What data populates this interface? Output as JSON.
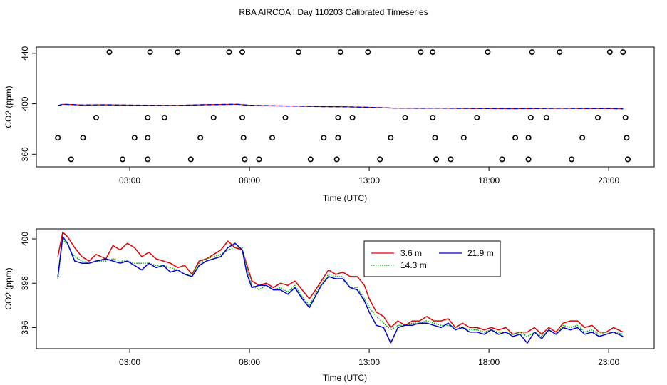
{
  "title": "RBA AIRCOA I  Day 110203  Calibrated Timeseries",
  "colors": {
    "s1": "#e00000",
    "s2": "#00b000",
    "s3": "#0000d0",
    "axis": "#000000"
  },
  "chart_data": [
    {
      "type": "scatter+line",
      "xlabel": "Time (UTC)",
      "ylabel": "CO2 (ppm)",
      "xticks": [
        {
          "v": 3,
          "label": "03:00"
        },
        {
          "v": 8,
          "label": "08:00"
        },
        {
          "v": 13,
          "label": "13:00"
        },
        {
          "v": 18,
          "label": "18:00"
        },
        {
          "v": 23,
          "label": "23:00"
        }
      ],
      "yticks": [
        {
          "v": 360,
          "label": "360"
        },
        {
          "v": 400,
          "label": "400"
        },
        {
          "v": 440,
          "label": "440"
        }
      ],
      "xlim": [
        -0.9,
        24.9
      ],
      "ylim": [
        350,
        445
      ],
      "calib_points": [
        {
          "x": 0.55,
          "y": 356
        },
        {
          "x": 2.7,
          "y": 356
        },
        {
          "x": 3.75,
          "y": 356
        },
        {
          "x": 5.55,
          "y": 356
        },
        {
          "x": 7.8,
          "y": 356
        },
        {
          "x": 8.4,
          "y": 356
        },
        {
          "x": 10.55,
          "y": 356
        },
        {
          "x": 11.65,
          "y": 356
        },
        {
          "x": 13.45,
          "y": 356
        },
        {
          "x": 15.8,
          "y": 356
        },
        {
          "x": 16.4,
          "y": 356
        },
        {
          "x": 18.55,
          "y": 356
        },
        {
          "x": 19.65,
          "y": 356
        },
        {
          "x": 21.45,
          "y": 356
        },
        {
          "x": 23.8,
          "y": 356
        },
        {
          "x": 0.0,
          "y": 373
        },
        {
          "x": 1.05,
          "y": 373
        },
        {
          "x": 3.2,
          "y": 373
        },
        {
          "x": 3.75,
          "y": 373
        },
        {
          "x": 5.95,
          "y": 373
        },
        {
          "x": 7.75,
          "y": 373
        },
        {
          "x": 8.95,
          "y": 373
        },
        {
          "x": 11.1,
          "y": 373
        },
        {
          "x": 11.7,
          "y": 373
        },
        {
          "x": 13.9,
          "y": 373
        },
        {
          "x": 15.75,
          "y": 373
        },
        {
          "x": 16.95,
          "y": 373
        },
        {
          "x": 19.1,
          "y": 373
        },
        {
          "x": 19.65,
          "y": 373
        },
        {
          "x": 21.9,
          "y": 373
        },
        {
          "x": 23.75,
          "y": 373
        },
        {
          "x": 1.6,
          "y": 389
        },
        {
          "x": 3.75,
          "y": 389
        },
        {
          "x": 4.45,
          "y": 389
        },
        {
          "x": 6.5,
          "y": 389
        },
        {
          "x": 7.7,
          "y": 389
        },
        {
          "x": 9.5,
          "y": 389
        },
        {
          "x": 11.7,
          "y": 389
        },
        {
          "x": 12.3,
          "y": 389
        },
        {
          "x": 14.5,
          "y": 389
        },
        {
          "x": 15.65,
          "y": 389
        },
        {
          "x": 17.5,
          "y": 389
        },
        {
          "x": 19.75,
          "y": 389
        },
        {
          "x": 20.4,
          "y": 389
        },
        {
          "x": 22.55,
          "y": 389
        },
        {
          "x": 23.7,
          "y": 389
        },
        {
          "x": 2.15,
          "y": 441
        },
        {
          "x": 3.85,
          "y": 441
        },
        {
          "x": 5.0,
          "y": 441
        },
        {
          "x": 7.15,
          "y": 441
        },
        {
          "x": 7.7,
          "y": 441
        },
        {
          "x": 10.05,
          "y": 441
        },
        {
          "x": 11.8,
          "y": 441
        },
        {
          "x": 12.95,
          "y": 441
        },
        {
          "x": 15.15,
          "y": 441
        },
        {
          "x": 15.65,
          "y": 441
        },
        {
          "x": 17.95,
          "y": 441
        },
        {
          "x": 19.8,
          "y": 441
        },
        {
          "x": 20.95,
          "y": 441
        },
        {
          "x": 23.05,
          "y": 441
        },
        {
          "x": 23.6,
          "y": 441
        }
      ],
      "trace": {
        "x": [
          0,
          0.2,
          0.5,
          1,
          2,
          3,
          4,
          5,
          6,
          7,
          7.5,
          8,
          9,
          10,
          11,
          12,
          13,
          14,
          15,
          16,
          17,
          18,
          19,
          20,
          21,
          22,
          23,
          23.6
        ],
        "y": [
          398.5,
          399.6,
          399.4,
          399.0,
          399.2,
          398.9,
          398.8,
          398.7,
          399.2,
          399.5,
          399.6,
          398.8,
          398.4,
          398.2,
          397.8,
          397.6,
          397.2,
          396.6,
          396.4,
          396.5,
          396.3,
          396.2,
          396.1,
          396.2,
          396.4,
          396.2,
          396.2,
          396.0
        ]
      }
    },
    {
      "type": "line",
      "xlabel": "Time (UTC)",
      "ylabel": "CO2 (ppm)",
      "xticks": [
        {
          "v": 3,
          "label": "03:00"
        },
        {
          "v": 8,
          "label": "08:00"
        },
        {
          "v": 13,
          "label": "13:00"
        },
        {
          "v": 18,
          "label": "18:00"
        },
        {
          "v": 23,
          "label": "23:00"
        }
      ],
      "yticks": [
        {
          "v": 396,
          "label": "396"
        },
        {
          "v": 398,
          "label": "398"
        },
        {
          "v": 400,
          "label": "400"
        }
      ],
      "xlim": [
        -0.9,
        24.9
      ],
      "ylim": [
        395.05,
        400.45
      ],
      "legend": {
        "position": "top-center",
        "entries": [
          "3.6 m",
          "14.3 m",
          "21.9 m"
        ]
      },
      "series": [
        {
          "name": "3.6 m",
          "color": "#e00000",
          "x": [
            0,
            0.2,
            0.4,
            0.7,
            1.0,
            1.3,
            1.6,
            2.0,
            2.3,
            2.6,
            2.9,
            3.2,
            3.5,
            3.8,
            4.1,
            4.4,
            4.7,
            5.0,
            5.3,
            5.6,
            5.9,
            6.2,
            6.5,
            6.8,
            7.1,
            7.4,
            7.7,
            7.9,
            8.1,
            8.4,
            8.7,
            9.0,
            9.3,
            9.6,
            9.9,
            10.2,
            10.5,
            10.7,
            11.0,
            11.3,
            11.6,
            11.9,
            12.2,
            12.5,
            12.8,
            13.0,
            13.3,
            13.6,
            13.9,
            14.2,
            14.5,
            14.8,
            15.1,
            15.4,
            15.7,
            16.0,
            16.3,
            16.6,
            16.9,
            17.2,
            17.5,
            17.8,
            18.1,
            18.4,
            18.7,
            19.0,
            19.3,
            19.6,
            19.9,
            20.2,
            20.5,
            20.8,
            21.1,
            21.4,
            21.7,
            22.0,
            22.3,
            22.6,
            22.9,
            23.2,
            23.6
          ],
          "y": [
            399.2,
            400.3,
            400.1,
            399.6,
            399.2,
            399.0,
            399.3,
            399.1,
            399.7,
            399.5,
            399.8,
            399.6,
            399.2,
            399.4,
            399.1,
            399.0,
            398.9,
            398.7,
            398.8,
            398.4,
            399.0,
            399.1,
            399.3,
            399.5,
            399.9,
            399.6,
            399.5,
            398.8,
            398.1,
            397.9,
            398.0,
            397.8,
            398.0,
            397.9,
            398.1,
            397.7,
            397.3,
            397.6,
            398.1,
            398.6,
            398.4,
            398.5,
            398.3,
            398.3,
            397.9,
            397.3,
            396.7,
            396.5,
            396.0,
            396.3,
            396.1,
            396.3,
            396.3,
            396.5,
            396.3,
            396.3,
            396.4,
            396.0,
            396.2,
            396.0,
            396.0,
            395.9,
            396.0,
            395.9,
            396.0,
            395.7,
            395.8,
            395.8,
            396.0,
            395.7,
            396.0,
            395.8,
            396.2,
            396.3,
            396.3,
            396.0,
            396.1,
            395.8,
            395.8,
            396.0,
            395.8
          ]
        },
        {
          "name": "14.3 m",
          "color": "#00b000",
          "x": [
            0,
            0.2,
            0.4,
            0.7,
            1.0,
            1.3,
            1.6,
            2.0,
            2.3,
            2.6,
            2.9,
            3.2,
            3.5,
            3.8,
            4.1,
            4.4,
            4.7,
            5.0,
            5.3,
            5.6,
            5.9,
            6.2,
            6.5,
            6.8,
            7.1,
            7.4,
            7.7,
            7.9,
            8.1,
            8.4,
            8.7,
            9.0,
            9.3,
            9.6,
            9.9,
            10.2,
            10.5,
            10.7,
            11.0,
            11.3,
            11.6,
            11.9,
            12.2,
            12.5,
            12.8,
            13.0,
            13.3,
            13.6,
            13.9,
            14.2,
            14.5,
            14.8,
            15.1,
            15.4,
            15.7,
            16.0,
            16.3,
            16.6,
            16.9,
            17.2,
            17.5,
            17.8,
            18.1,
            18.4,
            18.7,
            19.0,
            19.3,
            19.6,
            19.9,
            20.2,
            20.5,
            20.8,
            21.1,
            21.4,
            21.7,
            22.0,
            22.3,
            22.6,
            22.9,
            23.2,
            23.6
          ],
          "y": [
            398.2,
            400.0,
            399.7,
            399.2,
            399.0,
            398.9,
            399.0,
            399.0,
            399.1,
            399.0,
            399.0,
            398.9,
            398.9,
            398.9,
            398.8,
            398.8,
            398.7,
            398.6,
            398.4,
            398.4,
            398.9,
            399.1,
            399.2,
            399.3,
            399.5,
            399.6,
            399.6,
            398.6,
            397.9,
            397.7,
            397.9,
            397.7,
            397.8,
            397.6,
            397.9,
            397.4,
            397.0,
            397.4,
            398.0,
            398.4,
            398.3,
            398.3,
            397.8,
            397.8,
            397.3,
            396.9,
            396.5,
            396.2,
            395.9,
            396.1,
            396.1,
            396.2,
            396.2,
            396.3,
            396.2,
            396.1,
            396.1,
            396.0,
            396.0,
            395.9,
            395.9,
            395.8,
            395.9,
            395.8,
            395.8,
            395.7,
            395.8,
            395.6,
            395.8,
            395.6,
            395.9,
            395.7,
            396.1,
            396.0,
            396.1,
            395.8,
            395.9,
            395.7,
            395.8,
            395.8,
            395.7
          ]
        },
        {
          "name": "21.9 m",
          "color": "#0000d0",
          "x": [
            0,
            0.2,
            0.4,
            0.7,
            1.0,
            1.3,
            1.6,
            2.0,
            2.3,
            2.6,
            2.9,
            3.2,
            3.5,
            3.8,
            4.1,
            4.4,
            4.7,
            5.0,
            5.3,
            5.6,
            5.9,
            6.2,
            6.5,
            6.8,
            7.1,
            7.4,
            7.7,
            7.9,
            8.1,
            8.4,
            8.7,
            9.0,
            9.3,
            9.6,
            9.9,
            10.2,
            10.5,
            10.7,
            11.0,
            11.3,
            11.6,
            11.9,
            12.2,
            12.5,
            12.8,
            13.0,
            13.3,
            13.6,
            13.9,
            14.2,
            14.5,
            14.8,
            15.1,
            15.4,
            15.7,
            16.0,
            16.3,
            16.6,
            16.9,
            17.2,
            17.5,
            17.8,
            18.1,
            18.4,
            18.7,
            19.0,
            19.3,
            19.6,
            19.9,
            20.2,
            20.5,
            20.8,
            21.1,
            21.4,
            21.7,
            22.0,
            22.3,
            22.6,
            22.9,
            23.2,
            23.6
          ],
          "y": [
            398.3,
            400.1,
            399.8,
            399.0,
            398.9,
            398.9,
            399.0,
            399.1,
            399.0,
            398.9,
            399.0,
            398.8,
            398.6,
            398.9,
            398.7,
            398.8,
            398.5,
            398.6,
            398.4,
            398.3,
            398.8,
            399.0,
            399.1,
            399.2,
            399.6,
            399.8,
            399.5,
            398.4,
            397.8,
            397.9,
            397.9,
            397.7,
            397.7,
            397.5,
            397.8,
            397.3,
            396.9,
            397.3,
            397.9,
            398.3,
            398.2,
            398.2,
            397.8,
            397.7,
            397.2,
            396.7,
            396.1,
            396.0,
            395.3,
            396.0,
            396.1,
            396.1,
            396.2,
            396.2,
            396.1,
            396.0,
            396.2,
            395.9,
            396.0,
            395.8,
            395.8,
            395.7,
            395.9,
            395.7,
            395.8,
            395.6,
            395.7,
            395.3,
            395.8,
            395.5,
            395.9,
            395.7,
            396.0,
            395.9,
            396.0,
            395.7,
            395.8,
            395.6,
            395.7,
            395.8,
            395.6
          ]
        }
      ]
    }
  ]
}
